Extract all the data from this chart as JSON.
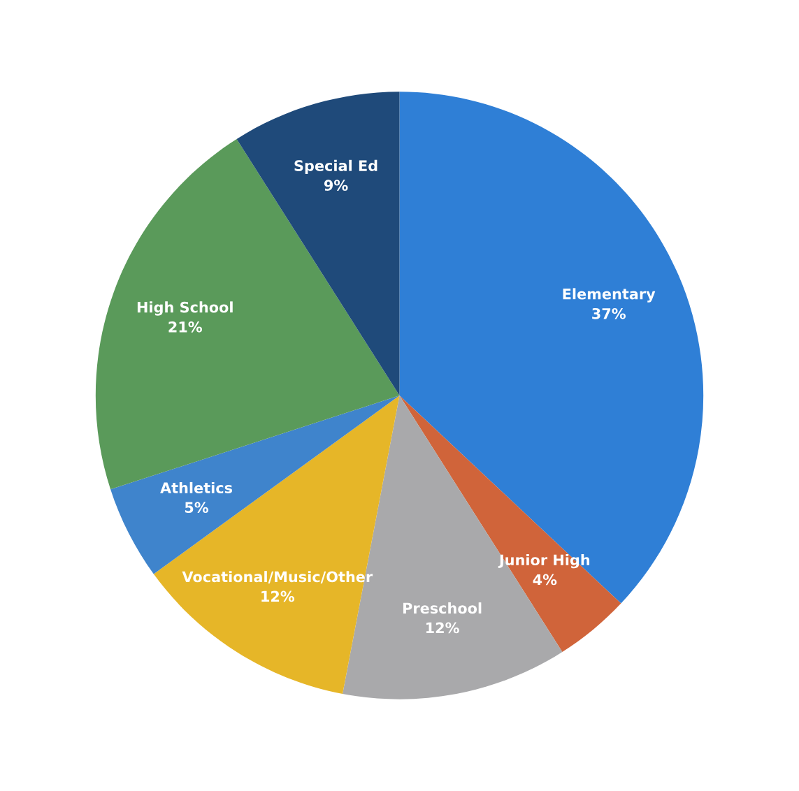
{
  "chart_data": {
    "type": "pie",
    "categories": [
      "Elementary",
      "Junior High",
      "Preschool",
      "Vocational/Music/Other",
      "Athletics",
      "High School",
      "Special Ed"
    ],
    "values": [
      37,
      4,
      12,
      12,
      5,
      21,
      9
    ],
    "value_labels": [
      "37%",
      "4%",
      "12%",
      "12%",
      "5%",
      "21%",
      "9%"
    ],
    "colors": [
      "#2f7fd6",
      "#d0643a",
      "#a9a9ab",
      "#e6b628",
      "#3f84cc",
      "#5a9a5a",
      "#1f4a7a"
    ]
  }
}
